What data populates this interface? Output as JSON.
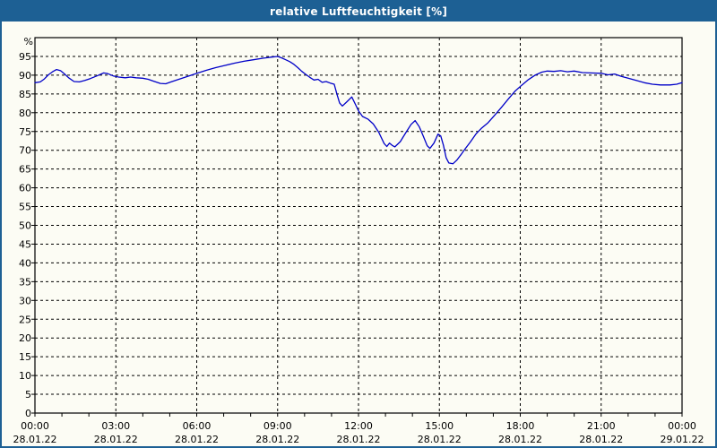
{
  "window": {
    "title": "relative Luftfeuchtigkeit [%]"
  },
  "colors": {
    "titlebar": "#1d6094",
    "border": "#1d6094",
    "title_text": "#ffffff",
    "line": "#0000c8",
    "grid": "#000000",
    "axis": "#000000",
    "background": "#fcfcf4",
    "label_text": "#000000"
  },
  "chart_data": {
    "type": "line",
    "title": "relative Luftfeuchtigkeit [%]",
    "ylabel": "%",
    "ylim": [
      0,
      100
    ],
    "y_tick_step": 5,
    "y_label_min": 0,
    "y_label_max": 95,
    "xlim_hours": [
      0,
      24
    ],
    "x_minor_tick_every_hours": 1,
    "grid": "dashed",
    "legend_position": "none",
    "x_major_ticks": [
      {
        "hour": 0,
        "time": "00:00",
        "date": "28.01.22"
      },
      {
        "hour": 3,
        "time": "03:00",
        "date": "28.01.22"
      },
      {
        "hour": 6,
        "time": "06:00",
        "date": "28.01.22"
      },
      {
        "hour": 9,
        "time": "09:00",
        "date": "28.01.22"
      },
      {
        "hour": 12,
        "time": "12:00",
        "date": "28.01.22"
      },
      {
        "hour": 15,
        "time": "15:00",
        "date": "28.01.22"
      },
      {
        "hour": 18,
        "time": "18:00",
        "date": "28.01.22"
      },
      {
        "hour": 21,
        "time": "21:00",
        "date": "28.01.22"
      },
      {
        "hour": 24,
        "time": "00:00",
        "date": "29.01.22"
      }
    ],
    "series": [
      {
        "name": "relative Luftfeuchtigkeit [%]",
        "color": "#0000c8",
        "points": [
          [
            0.0,
            88.0
          ],
          [
            0.2,
            88.2
          ],
          [
            0.35,
            89.0
          ],
          [
            0.5,
            90.1
          ],
          [
            0.65,
            90.9
          ],
          [
            0.8,
            91.5
          ],
          [
            0.95,
            91.2
          ],
          [
            1.1,
            90.3
          ],
          [
            1.25,
            89.3
          ],
          [
            1.45,
            88.3
          ],
          [
            1.65,
            88.2
          ],
          [
            1.85,
            88.6
          ],
          [
            2.05,
            89.1
          ],
          [
            2.3,
            89.8
          ],
          [
            2.55,
            90.6
          ],
          [
            2.7,
            90.4
          ],
          [
            2.9,
            89.8
          ],
          [
            3.1,
            89.5
          ],
          [
            3.35,
            89.3
          ],
          [
            3.55,
            89.5
          ],
          [
            3.75,
            89.3
          ],
          [
            4.0,
            89.2
          ],
          [
            4.2,
            88.9
          ],
          [
            4.4,
            88.4
          ],
          [
            4.65,
            87.8
          ],
          [
            4.85,
            87.7
          ],
          [
            5.05,
            88.2
          ],
          [
            5.3,
            88.8
          ],
          [
            5.55,
            89.4
          ],
          [
            5.8,
            90.0
          ],
          [
            6.05,
            90.6
          ],
          [
            6.35,
            91.3
          ],
          [
            6.7,
            92.0
          ],
          [
            7.05,
            92.6
          ],
          [
            7.4,
            93.2
          ],
          [
            7.75,
            93.7
          ],
          [
            8.1,
            94.1
          ],
          [
            8.45,
            94.5
          ],
          [
            8.75,
            94.8
          ],
          [
            9.0,
            95.0
          ],
          [
            9.15,
            94.6
          ],
          [
            9.3,
            94.1
          ],
          [
            9.45,
            93.6
          ],
          [
            9.6,
            92.9
          ],
          [
            9.75,
            92.0
          ],
          [
            9.9,
            91.0
          ],
          [
            10.05,
            90.2
          ],
          [
            10.2,
            89.4
          ],
          [
            10.35,
            88.7
          ],
          [
            10.5,
            88.9
          ],
          [
            10.65,
            88.1
          ],
          [
            10.8,
            88.3
          ],
          [
            10.95,
            87.9
          ],
          [
            11.1,
            87.6
          ],
          [
            11.2,
            85.0
          ],
          [
            11.3,
            82.6
          ],
          [
            11.4,
            81.8
          ],
          [
            11.55,
            82.8
          ],
          [
            11.75,
            84.2
          ],
          [
            11.9,
            82.0
          ],
          [
            12.0,
            80.5
          ],
          [
            12.15,
            79.0
          ],
          [
            12.35,
            78.3
          ],
          [
            12.55,
            77.0
          ],
          [
            12.75,
            74.8
          ],
          [
            12.95,
            71.8
          ],
          [
            13.05,
            71.0
          ],
          [
            13.15,
            71.9
          ],
          [
            13.25,
            71.3
          ],
          [
            13.35,
            70.9
          ],
          [
            13.55,
            72.3
          ],
          [
            13.75,
            74.6
          ],
          [
            13.95,
            76.9
          ],
          [
            14.1,
            77.9
          ],
          [
            14.25,
            76.3
          ],
          [
            14.4,
            73.8
          ],
          [
            14.55,
            71.2
          ],
          [
            14.65,
            70.5
          ],
          [
            14.8,
            71.9
          ],
          [
            14.95,
            74.3
          ],
          [
            15.05,
            73.8
          ],
          [
            15.15,
            71.3
          ],
          [
            15.25,
            68.0
          ],
          [
            15.35,
            66.6
          ],
          [
            15.5,
            66.4
          ],
          [
            15.65,
            67.4
          ],
          [
            15.8,
            68.8
          ],
          [
            15.95,
            70.3
          ],
          [
            16.15,
            72.2
          ],
          [
            16.35,
            74.3
          ],
          [
            16.55,
            75.8
          ],
          [
            16.8,
            77.3
          ],
          [
            17.05,
            79.3
          ],
          [
            17.3,
            81.4
          ],
          [
            17.55,
            83.6
          ],
          [
            17.8,
            85.7
          ],
          [
            18.05,
            87.3
          ],
          [
            18.3,
            88.8
          ],
          [
            18.55,
            90.0
          ],
          [
            18.8,
            90.8
          ],
          [
            19.0,
            91.1
          ],
          [
            19.25,
            91.0
          ],
          [
            19.5,
            91.2
          ],
          [
            19.75,
            90.9
          ],
          [
            20.0,
            91.1
          ],
          [
            20.3,
            90.7
          ],
          [
            20.6,
            90.6
          ],
          [
            21.0,
            90.5
          ],
          [
            21.25,
            90.1
          ],
          [
            21.5,
            90.3
          ],
          [
            21.75,
            89.7
          ],
          [
            22.0,
            89.2
          ],
          [
            22.3,
            88.6
          ],
          [
            22.6,
            88.0
          ],
          [
            22.9,
            87.6
          ],
          [
            23.2,
            87.4
          ],
          [
            23.55,
            87.4
          ],
          [
            23.8,
            87.6
          ],
          [
            24.0,
            88.0
          ]
        ]
      }
    ]
  }
}
